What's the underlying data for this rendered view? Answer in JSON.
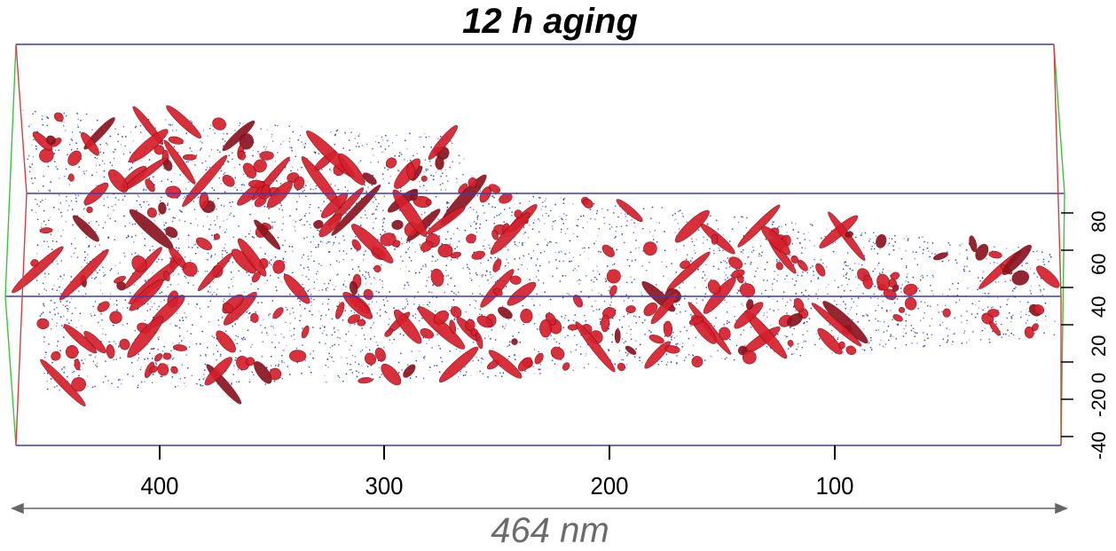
{
  "title": "12 h aging",
  "x_axis": {
    "ticks": [
      "400",
      "300",
      "200",
      "100"
    ]
  },
  "z_axis": {
    "ticks": [
      "80",
      "60",
      "40",
      "20",
      "0",
      "-20",
      "-40"
    ]
  },
  "dimension_label": "464 nm",
  "colors": {
    "matrix_atoms": "#2b3fb0",
    "precipitates": "#d61f2c",
    "bounding_box": "#3a3ab8",
    "box_edge_green": "#3cc23c",
    "box_edge_red": "#d04040"
  }
}
